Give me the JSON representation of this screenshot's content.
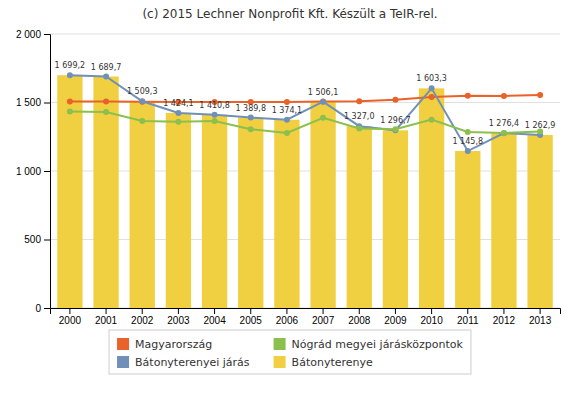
{
  "chart_data": {
    "type": "bar",
    "title": "(c) 2015 Lechner Nonprofit Kft. Készült a TeIR-rel.",
    "categories": [
      "2000",
      "2001",
      "2002",
      "2003",
      "2004",
      "2005",
      "2006",
      "2007",
      "2008",
      "2009",
      "2010",
      "2011",
      "2012",
      "2013"
    ],
    "series": [
      {
        "name": "Magyarország",
        "type": "line",
        "marker": "circle",
        "color": "#E8622A",
        "values": [
          1508.0,
          1507.0,
          1505.0,
          1504.0,
          1504.0,
          1504.0,
          1504.0,
          1507.0,
          1510.0,
          1520.0,
          1540.0,
          1549.0,
          1548.0,
          1555.0
        ]
      },
      {
        "name": "Bátonyterenyei járás",
        "type": "line",
        "marker": "circle",
        "color": "#7090B8",
        "data_labels": true,
        "values": [
          1699.2,
          1689.7,
          1509.3,
          1424.1,
          1410.8,
          1389.8,
          1374.1,
          1506.1,
          1327.0,
          1296.7,
          1603.3,
          1145.8,
          1276.4,
          1262.9
        ],
        "value_labels": [
          "1 699,2",
          "1 689,7",
          "1 509,3",
          "1 424,1",
          "1 410,8",
          "1 389,8",
          "1 374,1",
          "1 506,1",
          "1 327,0",
          "1 296,7",
          "1 603,3",
          "1 145,8",
          "1 276,4",
          "1 262,9"
        ]
      },
      {
        "name": "Nógrád megyei járásközpontok",
        "type": "line",
        "marker": "circle",
        "color": "#8BBF4E",
        "values": [
          1435.0,
          1430.0,
          1365.0,
          1360.0,
          1365.0,
          1305.0,
          1278.0,
          1388.0,
          1310.0,
          1305.0,
          1375.0,
          1285.0,
          1278.0,
          1288.0
        ]
      },
      {
        "name": "Bátonyterenye",
        "type": "bar",
        "color": "#F0D040",
        "values": [
          1699.2,
          1689.7,
          1509.3,
          1424.1,
          1410.8,
          1389.8,
          1374.1,
          1506.1,
          1327.0,
          1296.7,
          1603.3,
          1145.8,
          1276.4,
          1262.9
        ]
      }
    ],
    "ylim": [
      0,
      2000
    ],
    "yticks": [
      0,
      500,
      {
        "value": 1000,
        "label": "1 000"
      },
      {
        "value": 1500,
        "label": "1 500"
      },
      {
        "value": 2000,
        "label": "2 000"
      }
    ],
    "grid": true,
    "legend": "bottom"
  }
}
